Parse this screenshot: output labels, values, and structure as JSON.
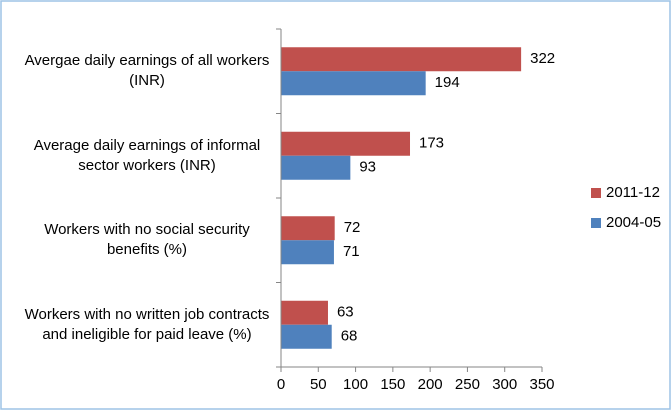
{
  "chart_data": {
    "type": "hbar",
    "categories": [
      "Avergae daily earnings of all workers (INR)",
      "Average daily earnings of informal sector workers (INR)",
      "Workers with no social security benefits (%)",
      "Workers with no written job contracts and ineligible for paid leave (%)"
    ],
    "series": [
      {
        "name": "2011-12",
        "color": "#c0504d",
        "values": [
          322,
          173,
          72,
          63
        ]
      },
      {
        "name": "2004-05",
        "color": "#4f81bd",
        "values": [
          194,
          93,
          71,
          68
        ]
      }
    ],
    "xlim": [
      0,
      350
    ],
    "xticks": [
      0,
      50,
      100,
      150,
      200,
      250,
      300,
      350
    ],
    "legend": "right"
  }
}
